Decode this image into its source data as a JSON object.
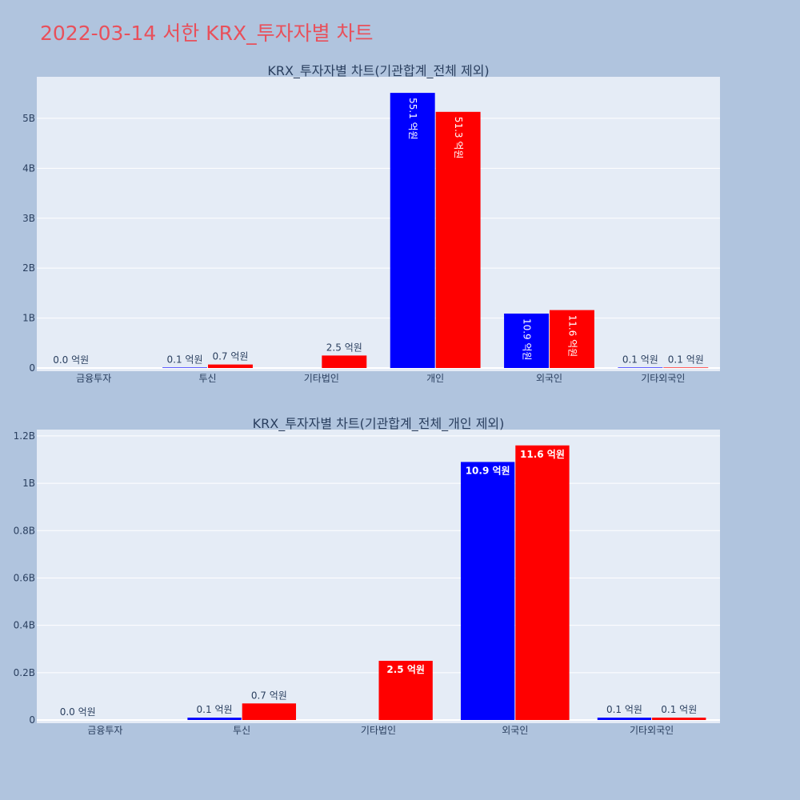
{
  "title": "2022-03-14 서한 KRX_투자자별 차트",
  "colors": {
    "series1": "#0000ff",
    "series2": "#ff0000",
    "plot_bg": "#e5ecf6",
    "paper_bg": "#b0c4de",
    "title": "#e8505b"
  },
  "chart_data": [
    {
      "type": "bar",
      "title": "KRX_투자자별 차트(기관합계_전체 제외)",
      "categories": [
        "금융투자",
        "투신",
        "기타법인",
        "개인",
        "외국인",
        "기타외국인"
      ],
      "series": [
        {
          "color": "#0000ff",
          "values": [
            0.0,
            0.01,
            0,
            5.51,
            1.09,
            0.01
          ],
          "labels": [
            "0.0 억원",
            "0.1 억원",
            "",
            "55.1 억원",
            "10.9 억원",
            "0.1 억원"
          ]
        },
        {
          "color": "#ff0000",
          "values": [
            0,
            0.07,
            0.25,
            5.13,
            1.16,
            0.01
          ],
          "labels": [
            "",
            "0.7 억원",
            "2.5 억원",
            "51.3 억원",
            "11.6 억원",
            "0.1 억원"
          ]
        }
      ],
      "yticks": [
        0,
        1,
        2,
        3,
        4,
        5
      ],
      "yticklabels": [
        "0",
        "1B",
        "2B",
        "3B",
        "4B",
        "5B"
      ],
      "ylim": [
        0,
        5.8
      ],
      "label_orientation": "vertical-when-inside"
    },
    {
      "type": "bar",
      "title": "KRX_투자자별 차트(기관합계_전체_개인 제외)",
      "categories": [
        "금융투자",
        "투신",
        "기타법인",
        "외국인",
        "기타외국인"
      ],
      "series": [
        {
          "color": "#0000ff",
          "values": [
            0.0,
            0.01,
            0,
            1.09,
            0.01
          ],
          "labels": [
            "0.0 억원",
            "0.1 억원",
            "",
            "10.9 억원",
            "0.1 억원"
          ]
        },
        {
          "color": "#ff0000",
          "values": [
            0,
            0.07,
            0.25,
            1.16,
            0.01
          ],
          "labels": [
            "",
            "0.7 억원",
            "2.5 억원",
            "11.6 억원",
            "0.1 억원"
          ]
        }
      ],
      "yticks": [
        0,
        0.2,
        0.4,
        0.6,
        0.8,
        1.0,
        1.2
      ],
      "yticklabels": [
        "0",
        "0.2B",
        "0.4B",
        "0.6B",
        "0.8B",
        "1B",
        "1.2B"
      ],
      "ylim": [
        0,
        1.22
      ],
      "label_orientation": "horizontal"
    }
  ]
}
